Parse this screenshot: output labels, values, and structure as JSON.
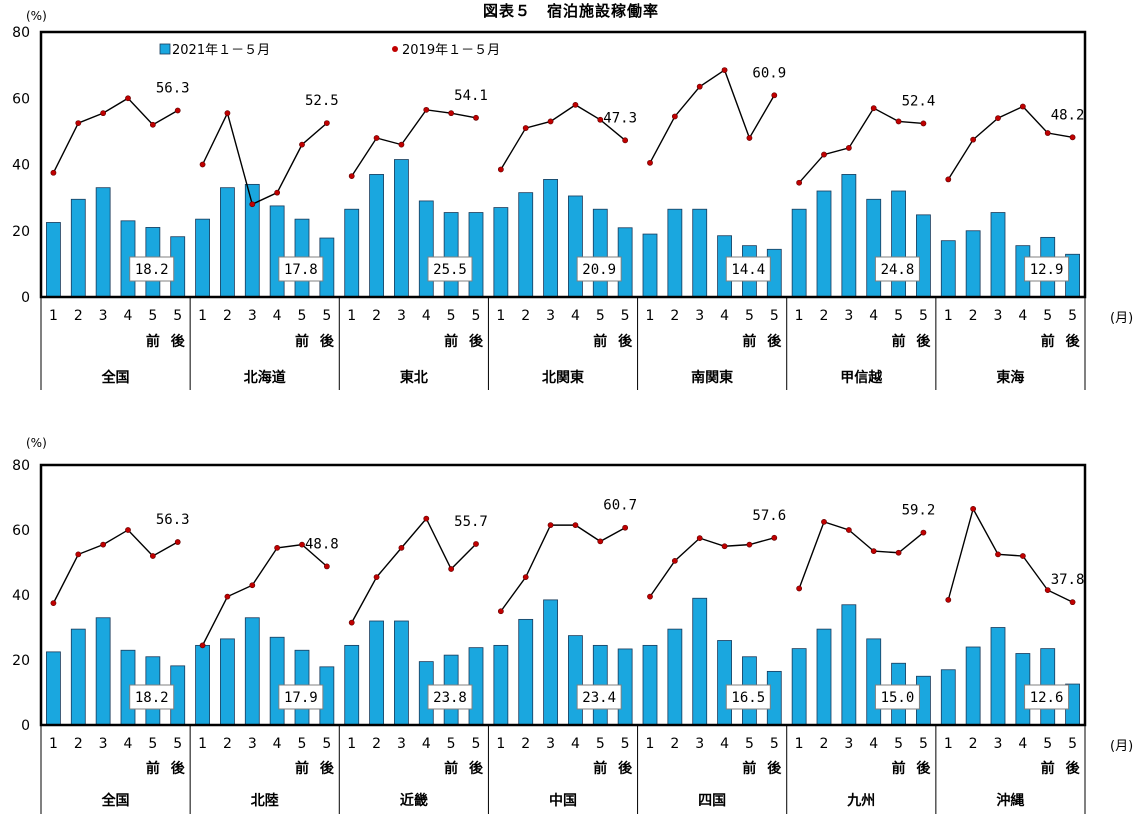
{
  "page": {
    "title": "図表５　宿泊施設稼働率"
  },
  "chart_data": [
    {
      "type": "bar",
      "title": "図表５　宿泊施設稼働率",
      "ylabel": "(%)",
      "xunit": "(月)",
      "ylim": [
        0,
        80
      ],
      "yticks": [
        "0",
        "20",
        "40",
        "60",
        "80"
      ],
      "month_labels": [
        "1",
        "2",
        "3",
        "4",
        "5",
        "5"
      ],
      "period_labels": [
        "",
        "",
        "",
        "",
        "前",
        "後"
      ],
      "legend": {
        "bar": "2021年１－５月",
        "line": "2019年１－５月"
      },
      "regions": [
        {
          "name": "全国",
          "bars": [
            22.5,
            29.5,
            33,
            23,
            21,
            18.2
          ],
          "line": [
            37.5,
            52.5,
            55.5,
            60,
            52,
            56.3
          ],
          "bar_label": "18.2",
          "line_label": "56.3"
        },
        {
          "name": "北海道",
          "bars": [
            23.5,
            33,
            34,
            27.5,
            23.5,
            17.8
          ],
          "line": [
            40,
            55.5,
            28,
            31.5,
            46,
            52.5
          ],
          "bar_label": "17.8",
          "line_label": "52.5"
        },
        {
          "name": "東北",
          "bars": [
            26.5,
            37,
            41.5,
            29,
            25.5,
            25.5
          ],
          "line": [
            36.5,
            48,
            46,
            56.5,
            55.5,
            54.1
          ],
          "bar_label": "25.5",
          "line_label": "54.1"
        },
        {
          "name": "北関東",
          "bars": [
            27,
            31.5,
            35.5,
            30.5,
            26.5,
            20.9
          ],
          "line": [
            38.5,
            51,
            53,
            58,
            53.5,
            47.3
          ],
          "bar_label": "20.9",
          "line_label": "47.3"
        },
        {
          "name": "南関東",
          "bars": [
            19,
            26.5,
            26.5,
            18.5,
            15.5,
            14.4
          ],
          "line": [
            40.5,
            54.5,
            63.5,
            68.5,
            48,
            60.9
          ],
          "bar_label": "14.4",
          "line_label": "60.9"
        },
        {
          "name": "甲信越",
          "bars": [
            26.5,
            32,
            37,
            29.5,
            32,
            24.8
          ],
          "line": [
            34.5,
            43,
            45,
            57,
            53,
            52.4
          ],
          "bar_label": "24.8",
          "line_label": "52.4"
        },
        {
          "name": "東海",
          "bars": [
            17,
            20,
            25.5,
            15.5,
            18,
            12.9
          ],
          "line": [
            35.5,
            47.5,
            54,
            57.5,
            49.5,
            48.2
          ],
          "bar_label": "12.9",
          "line_label": "48.2"
        }
      ]
    },
    {
      "type": "bar",
      "ylabel": "(%)",
      "xunit": "(月)",
      "ylim": [
        0,
        80
      ],
      "yticks": [
        "0",
        "20",
        "40",
        "60",
        "80"
      ],
      "month_labels": [
        "1",
        "2",
        "3",
        "4",
        "5",
        "5"
      ],
      "period_labels": [
        "",
        "",
        "",
        "",
        "前",
        "後"
      ],
      "regions": [
        {
          "name": "全国",
          "bars": [
            22.5,
            29.5,
            33,
            23,
            21,
            18.2
          ],
          "line": [
            37.5,
            52.5,
            55.5,
            60,
            52,
            56.3
          ],
          "bar_label": "18.2",
          "line_label": "56.3"
        },
        {
          "name": "北陸",
          "bars": [
            24.5,
            26.5,
            33,
            27,
            23,
            17.9
          ],
          "line": [
            24.5,
            39.5,
            43,
            54.5,
            55.5,
            48.8
          ],
          "bar_label": "17.9",
          "line_label": "48.8"
        },
        {
          "name": "近畿",
          "bars": [
            24.5,
            32,
            32,
            19.5,
            21.5,
            23.8
          ],
          "line": [
            31.5,
            45.5,
            54.5,
            63.5,
            48,
            55.7
          ],
          "bar_label": "23.8",
          "line_label": "55.7"
        },
        {
          "name": "中国",
          "bars": [
            24.5,
            32.5,
            38.5,
            27.5,
            24.5,
            23.4
          ],
          "line": [
            35,
            45.5,
            61.5,
            61.5,
            56.5,
            60.7
          ],
          "bar_label": "23.4",
          "line_label": "60.7"
        },
        {
          "name": "四国",
          "bars": [
            24.5,
            29.5,
            39,
            26,
            21,
            16.5
          ],
          "line": [
            39.5,
            50.5,
            57.5,
            55,
            55.5,
            57.6
          ],
          "bar_label": "16.5",
          "line_label": "57.6"
        },
        {
          "name": "九州",
          "bars": [
            23.5,
            29.5,
            37,
            26.5,
            19,
            15.0
          ],
          "line": [
            42,
            62.5,
            60,
            53.5,
            53,
            59.2
          ],
          "bar_label": "15.0",
          "line_label": "59.2"
        },
        {
          "name": "沖縄",
          "bars": [
            17,
            24,
            30,
            22,
            23.5,
            12.6
          ],
          "line": [
            38.5,
            66.5,
            52.5,
            52,
            41.5,
            37.8
          ],
          "bar_label": "12.6",
          "line_label": "37.8"
        }
      ]
    }
  ],
  "colors": {
    "bar_fill": "#1aa7df",
    "bar_stroke": "#1a3a5a",
    "line": "#000000",
    "marker": "#c00000",
    "frame": "#000000"
  }
}
